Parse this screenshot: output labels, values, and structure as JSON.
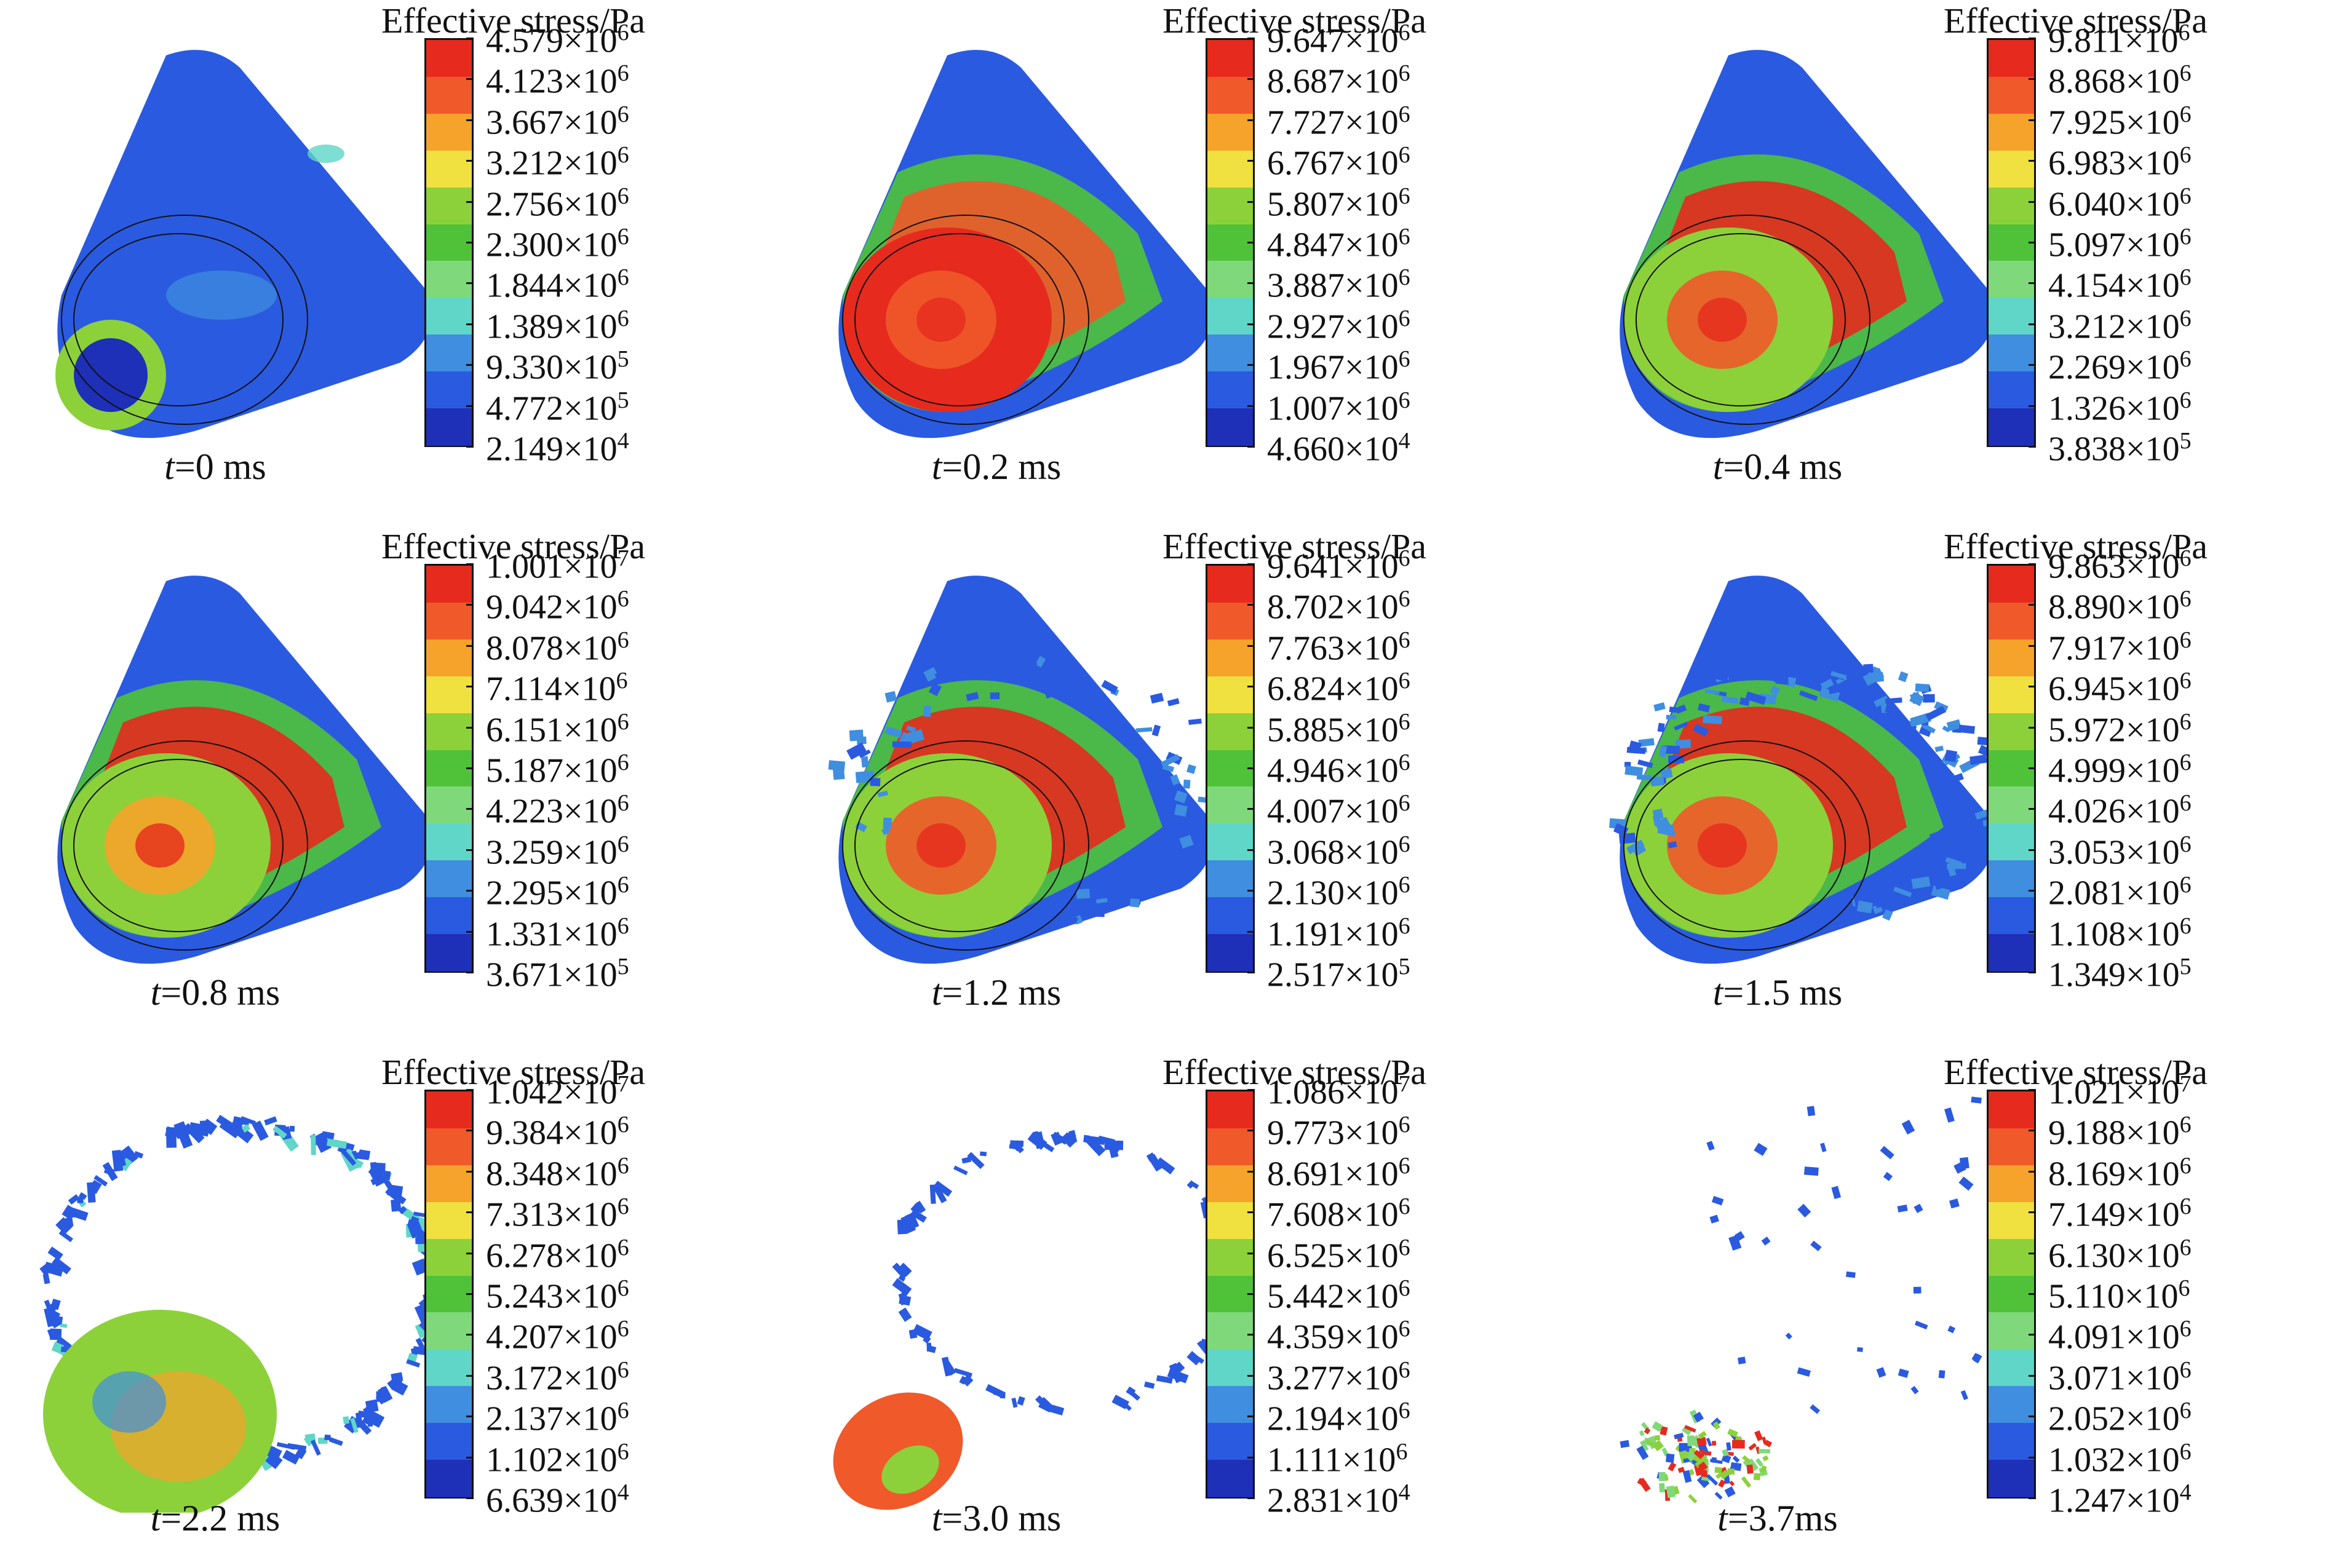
{
  "legend_title": "Effective stress/Pa",
  "colors": [
    "#1e2fb8",
    "#2a5ae0",
    "#3f8ee0",
    "#5fd6c8",
    "#7fd97a",
    "#4fc23a",
    "#8cd13a",
    "#f0e040",
    "#f5a32a",
    "#f0592a",
    "#e62a1e"
  ],
  "panels": [
    {
      "time_var": "t",
      "time_rest": "=0 ms",
      "labels": [
        "4.579×10",
        "4.123×10",
        "3.667×10",
        "3.212×10",
        "2.756×10",
        "2.300×10",
        "1.844×10",
        "1.389×10",
        "9.330×10",
        "4.772×10",
        "2.149×10"
      ],
      "exps": [
        "6",
        "6",
        "6",
        "6",
        "6",
        "6",
        "6",
        "6",
        "5",
        "5",
        "4"
      ],
      "state": "intact-low"
    },
    {
      "time_var": "t",
      "time_rest": "=0.2 ms",
      "labels": [
        "9.647×10",
        "8.687×10",
        "7.727×10",
        "6.767×10",
        "5.807×10",
        "4.847×10",
        "3.887×10",
        "2.927×10",
        "1.967×10",
        "1.007×10",
        "4.660×10"
      ],
      "exps": [
        "6",
        "6",
        "6",
        "6",
        "6",
        "6",
        "6",
        "6",
        "6",
        "6",
        "4"
      ],
      "state": "intact-band-low"
    },
    {
      "time_var": "t",
      "time_rest": "=0.4 ms",
      "labels": [
        "9.811×10",
        "8.868×10",
        "7.925×10",
        "6.983×10",
        "6.040×10",
        "5.097×10",
        "4.154×10",
        "3.212×10",
        "2.269×10",
        "1.326×10",
        "3.838×10"
      ],
      "exps": [
        "6",
        "6",
        "6",
        "6",
        "6",
        "6",
        "6",
        "6",
        "6",
        "6",
        "5"
      ],
      "state": "intact-band-mid"
    },
    {
      "time_var": "t",
      "time_rest": "=0.8 ms",
      "labels": [
        "1.001×10",
        "9.042×10",
        "8.078×10",
        "7.114×10",
        "6.151×10",
        "5.187×10",
        "4.223×10",
        "3.259×10",
        "2.295×10",
        "1.331×10",
        "3.671×10"
      ],
      "exps": [
        "7",
        "6",
        "6",
        "6",
        "6",
        "6",
        "6",
        "6",
        "6",
        "6",
        "5"
      ],
      "state": "intact-band-high"
    },
    {
      "time_var": "t",
      "time_rest": "=1.2 ms",
      "labels": [
        "9.641×10",
        "8.702×10",
        "7.763×10",
        "6.824×10",
        "5.885×10",
        "4.946×10",
        "4.007×10",
        "3.068×10",
        "2.130×10",
        "1.191×10",
        "2.517×10"
      ],
      "exps": [
        "6",
        "6",
        "6",
        "6",
        "6",
        "6",
        "6",
        "6",
        "6",
        "6",
        "5"
      ],
      "state": "cracking"
    },
    {
      "time_var": "t",
      "time_rest": "=1.5 ms",
      "labels": [
        "9.863×10",
        "8.890×10",
        "7.917×10",
        "6.945×10",
        "5.972×10",
        "4.999×10",
        "4.026×10",
        "3.053×10",
        "2.081×10",
        "1.108×10",
        "1.349×10"
      ],
      "exps": [
        "6",
        "6",
        "6",
        "6",
        "6",
        "6",
        "6",
        "6",
        "6",
        "6",
        "5"
      ],
      "state": "fragmenting"
    },
    {
      "time_var": "t",
      "time_rest": "=2.2 ms",
      "labels": [
        "1.042×10",
        "9.384×10",
        "8.348×10",
        "7.313×10",
        "6.278×10",
        "5.243×10",
        "4.207×10",
        "3.172×10",
        "2.137×10",
        "1.102×10",
        "6.639×10"
      ],
      "exps": [
        "7",
        "6",
        "6",
        "6",
        "6",
        "6",
        "6",
        "6",
        "6",
        "6",
        "4"
      ],
      "state": "ring"
    },
    {
      "time_var": "t",
      "time_rest": "=3.0 ms",
      "labels": [
        "1.086×10",
        "9.773×10",
        "8.691×10",
        "7.608×10",
        "6.525×10",
        "5.442×10",
        "4.359×10",
        "3.277×10",
        "2.194×10",
        "1.111×10",
        "2.831×10"
      ],
      "exps": [
        "7",
        "6",
        "6",
        "6",
        "6",
        "6",
        "6",
        "6",
        "6",
        "6",
        "4"
      ],
      "state": "sparse-ring"
    },
    {
      "time_var": "t",
      "time_rest": "=3.7ms",
      "labels": [
        "1.021×10",
        "9.188×10",
        "8.169×10",
        "7.149×10",
        "6.130×10",
        "5.110×10",
        "4.091×10",
        "3.071×10",
        "2.052×10",
        "1.032×10",
        "1.247×10"
      ],
      "exps": [
        "7",
        "6",
        "6",
        "6",
        "6",
        "6",
        "6",
        "6",
        "6",
        "6",
        "4"
      ],
      "state": "debris"
    }
  ]
}
